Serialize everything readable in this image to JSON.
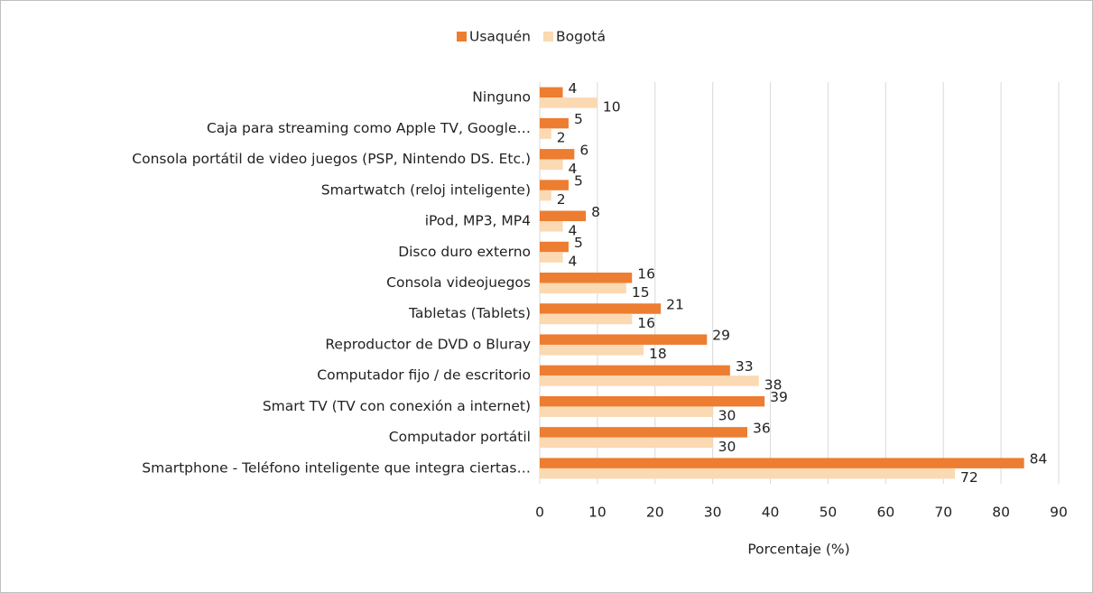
{
  "chart_data": {
    "type": "hbar",
    "categories": [
      "Ninguno",
      "Caja para streaming como Apple TV, Google…",
      "Consola portátil de video juegos (PSP, Nintendo DS. Etc.)",
      "Smartwatch (reloj inteligente)",
      "iPod, MP3, MP4",
      "Disco duro externo",
      "Consola videojuegos",
      "Tabletas (Tablets)",
      "Reproductor de DVD o Bluray",
      "Computador fijo / de escritorio",
      "Smart TV (TV con conexión a internet)",
      "Computador portátil",
      "Smartphone - Teléfono inteligente que integra ciertas…"
    ],
    "series": [
      {
        "name": "Usaquén",
        "color": "#ED7D31",
        "values": [
          4,
          5,
          6,
          5,
          8,
          5,
          16,
          21,
          29,
          33,
          39,
          36,
          84
        ]
      },
      {
        "name": "Bogotá",
        "color": "#FBD9B2",
        "values": [
          10,
          2,
          4,
          2,
          4,
          4,
          15,
          16,
          18,
          38,
          30,
          30,
          72
        ]
      }
    ],
    "x_label": "Porcentaje (%)",
    "xlim": [
      0,
      90
    ],
    "xticks": [
      0,
      10,
      20,
      30,
      40,
      50,
      60,
      70,
      80,
      90
    ],
    "grid": true,
    "legend": "top",
    "data_labels": true
  }
}
